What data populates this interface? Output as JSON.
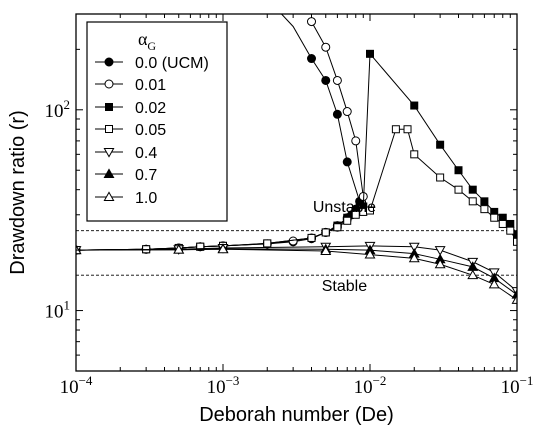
{
  "chart_data": {
    "type": "line",
    "xscale": "log",
    "yscale": "log",
    "xlim": [
      0.0001,
      0.1
    ],
    "ylim": [
      5,
      300
    ],
    "xlabel": "Deborah number (De)",
    "ylabel": "Drawdown ratio (r)",
    "x_ticks": [
      {
        "value": 0.0001,
        "base": "10",
        "exp": "−4"
      },
      {
        "value": 0.001,
        "base": "10",
        "exp": "−3"
      },
      {
        "value": 0.01,
        "base": "10",
        "exp": "−2"
      },
      {
        "value": 0.1,
        "base": "10",
        "exp": "−1"
      }
    ],
    "y_ticks": [
      {
        "value": 10,
        "base": "10",
        "exp": "1"
      },
      {
        "value": 100,
        "base": "10",
        "exp": "2"
      }
    ],
    "legend": {
      "title": "α",
      "title_sub": "G",
      "position": "top-left"
    },
    "reference_lines": [
      25,
      15
    ],
    "annotations": [
      {
        "text": "Unstable",
        "x": 0.0067,
        "y": 31
      },
      {
        "text": "Stable",
        "x": 0.0067,
        "y": 12.5
      }
    ],
    "series": [
      {
        "name": "0.0 (UCM)",
        "marker": "circle",
        "fill": "#000000",
        "x": [
          0.0001,
          0.0003,
          0.0005,
          0.0007,
          0.001,
          0.002,
          0.003,
          0.004,
          0.005,
          0.006,
          0.007,
          0.0075,
          0.008,
          0.0085,
          0.007,
          0.006,
          0.005,
          0.004,
          0.003,
          0.0025
        ],
        "y": [
          20,
          20.2,
          20.5,
          20.8,
          21,
          21.5,
          22,
          22.8,
          24.5,
          26.5,
          28.5,
          30,
          32,
          35,
          55,
          95,
          140,
          180,
          260,
          300
        ],
        "marker_x": [
          0.0001,
          0.0003,
          0.0005,
          0.0007,
          0.001,
          0.002,
          0.003,
          0.004,
          0.005,
          0.006,
          0.007,
          0.0075,
          0.008,
          0.0085,
          0.007,
          0.006,
          0.005,
          0.004
        ],
        "marker_y": [
          20,
          20.2,
          20.5,
          20.8,
          21,
          21.5,
          22,
          22.8,
          24.5,
          26.5,
          28.5,
          30,
          32,
          35,
          55,
          95,
          140,
          180
        ]
      },
      {
        "name": "0.01",
        "marker": "circle",
        "fill": "#ffffff",
        "x": [
          0.0001,
          0.0003,
          0.0005,
          0.0007,
          0.001,
          0.002,
          0.003,
          0.004,
          0.005,
          0.006,
          0.007,
          0.008,
          0.009,
          0.008,
          0.007,
          0.006,
          0.005,
          0.004
        ],
        "y": [
          20,
          20.2,
          20.5,
          20.8,
          21,
          21.5,
          22.2,
          23,
          24.5,
          26,
          29,
          31,
          37,
          70,
          98,
          140,
          205,
          275
        ],
        "marker_x": [
          0.0001,
          0.0003,
          0.0005,
          0.0007,
          0.001,
          0.002,
          0.003,
          0.004,
          0.005,
          0.006,
          0.007,
          0.008,
          0.009,
          0.008,
          0.007,
          0.006,
          0.005,
          0.004
        ],
        "marker_y": [
          20,
          20.2,
          20.5,
          20.8,
          21,
          21.5,
          22.2,
          23,
          24.5,
          26,
          29,
          31,
          37,
          70,
          98,
          140,
          205,
          275
        ]
      },
      {
        "name": "0.02",
        "marker": "square",
        "fill": "#000000",
        "x": [
          0.0001,
          0.0003,
          0.0005,
          0.0007,
          0.001,
          0.002,
          0.004,
          0.005,
          0.006,
          0.007,
          0.008,
          0.009,
          0.01,
          0.02,
          0.03,
          0.04,
          0.05,
          0.06,
          0.07,
          0.08,
          0.09,
          0.1
        ],
        "y": [
          20,
          20.2,
          20.5,
          20.8,
          21,
          21.6,
          23,
          24.5,
          26.5,
          29,
          31,
          33,
          190,
          105,
          67,
          50,
          40,
          35,
          31,
          29,
          27,
          24
        ],
        "marker_x": [
          0.0001,
          0.0003,
          0.0005,
          0.0007,
          0.001,
          0.002,
          0.004,
          0.005,
          0.006,
          0.007,
          0.008,
          0.009,
          0.01,
          0.02,
          0.03,
          0.04,
          0.05,
          0.06,
          0.07,
          0.08,
          0.09,
          0.1
        ],
        "marker_y": [
          20,
          20.2,
          20.5,
          20.8,
          21,
          21.6,
          23,
          24.5,
          26.5,
          29,
          31,
          33,
          190,
          105,
          67,
          50,
          40,
          35,
          31,
          29,
          27,
          24
        ]
      },
      {
        "name": "0.05",
        "marker": "square",
        "fill": "#ffffff",
        "x": [
          0.0001,
          0.0003,
          0.0005,
          0.0007,
          0.001,
          0.002,
          0.004,
          0.005,
          0.006,
          0.007,
          0.008,
          0.009,
          0.01,
          0.015,
          0.018,
          0.02,
          0.03,
          0.04,
          0.05,
          0.06,
          0.07,
          0.08,
          0.09,
          0.1
        ],
        "y": [
          20,
          20.2,
          20.5,
          20.8,
          21,
          21.6,
          23,
          24.5,
          26,
          28,
          30,
          31,
          31.5,
          80,
          80,
          60,
          46,
          40,
          35,
          32,
          29,
          27,
          25,
          22
        ],
        "marker_x": [
          0.0001,
          0.0003,
          0.0005,
          0.0007,
          0.001,
          0.002,
          0.004,
          0.005,
          0.006,
          0.007,
          0.008,
          0.009,
          0.01,
          0.015,
          0.018,
          0.02,
          0.03,
          0.04,
          0.05,
          0.06,
          0.07,
          0.08,
          0.09,
          0.1
        ],
        "marker_y": [
          20,
          20.2,
          20.5,
          20.8,
          21,
          21.6,
          23,
          24.5,
          26,
          28,
          30,
          31,
          31.5,
          80,
          80,
          60,
          46,
          40,
          35,
          32,
          29,
          27,
          25,
          22
        ]
      },
      {
        "name": "0.4",
        "marker": "triangle-down",
        "fill": "#ffffff",
        "x": [
          0.0001,
          0.0005,
          0.001,
          0.005,
          0.01,
          0.02,
          0.03,
          0.05,
          0.07,
          0.1
        ],
        "y": [
          20,
          20.2,
          20.5,
          20.8,
          21,
          20.8,
          20,
          17.5,
          15.5,
          12.5
        ],
        "marker_x": [
          0.0001,
          0.0005,
          0.001,
          0.005,
          0.01,
          0.02,
          0.03,
          0.05,
          0.07,
          0.1
        ],
        "marker_y": [
          20,
          20.2,
          20.5,
          20.8,
          21,
          20.8,
          20,
          17.5,
          15.5,
          12.5
        ]
      },
      {
        "name": "0.7",
        "marker": "triangle-up",
        "fill": "#000000",
        "x": [
          0.0001,
          0.0005,
          0.001,
          0.005,
          0.01,
          0.02,
          0.03,
          0.05,
          0.07,
          0.1
        ],
        "y": [
          20,
          20.1,
          20.3,
          20.2,
          20,
          19.2,
          18,
          16.5,
          14.5,
          12
        ],
        "marker_x": [
          0.0001,
          0.0005,
          0.001,
          0.005,
          0.01,
          0.02,
          0.03,
          0.05,
          0.07,
          0.1
        ],
        "marker_y": [
          20,
          20.1,
          20.3,
          20.2,
          20,
          19.2,
          18,
          16.5,
          14.5,
          12
        ]
      },
      {
        "name": "1.0",
        "marker": "triangle-up",
        "fill": "#ffffff",
        "x": [
          0.0001,
          0.0005,
          0.001,
          0.005,
          0.01,
          0.02,
          0.03,
          0.05,
          0.07,
          0.1
        ],
        "y": [
          20,
          20.1,
          20.2,
          19.8,
          19,
          18.2,
          17,
          15,
          13.5,
          11.3
        ],
        "marker_x": [
          0.0001,
          0.0005,
          0.001,
          0.005,
          0.01,
          0.02,
          0.03,
          0.05,
          0.07,
          0.1
        ],
        "marker_y": [
          20,
          20.1,
          20.2,
          19.8,
          19,
          18.2,
          17,
          15,
          13.5,
          11.3
        ]
      }
    ]
  }
}
